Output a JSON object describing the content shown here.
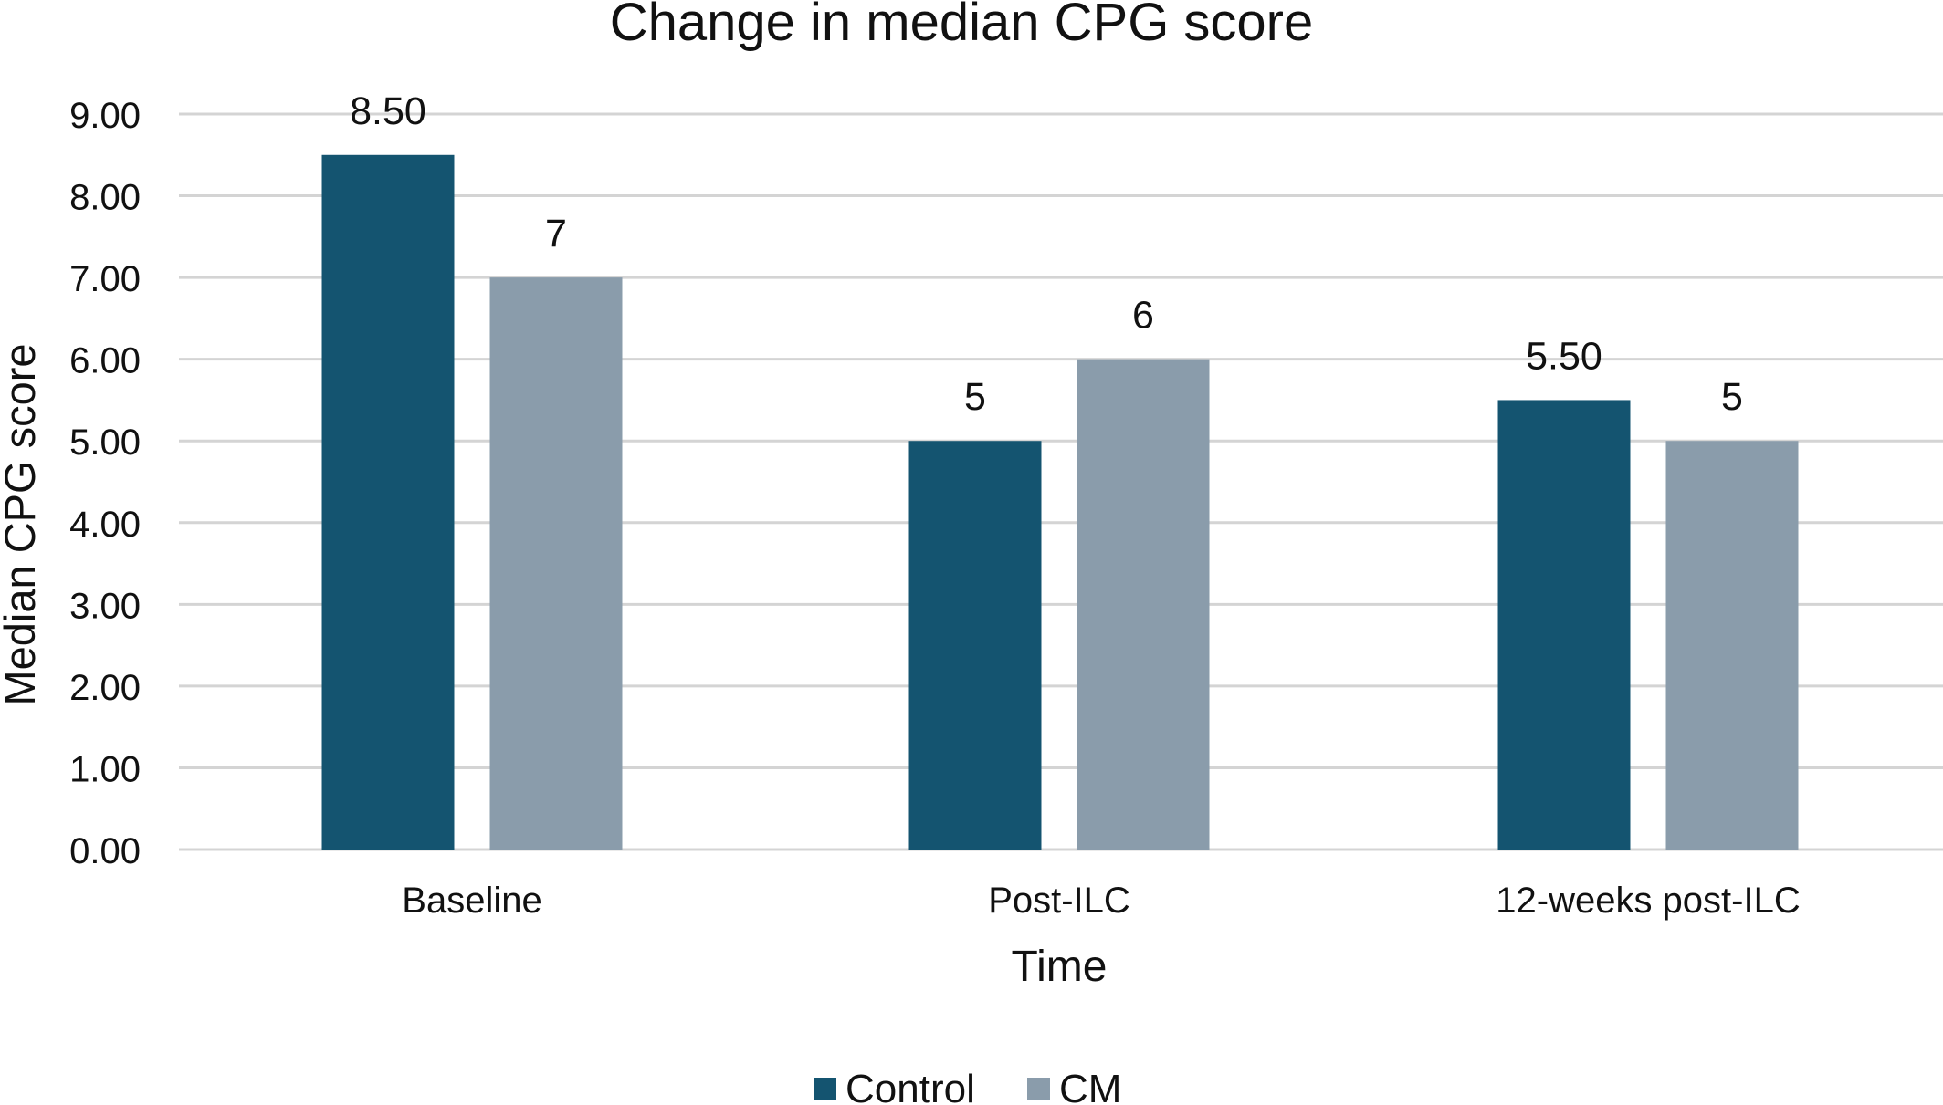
{
  "chart_data": {
    "type": "bar",
    "title": "Change in median CPG score",
    "xlabel": "Time",
    "ylabel": "Median CPG score",
    "categories": [
      "Baseline",
      "Post-ILC",
      "12-weeks post-ILC"
    ],
    "series": [
      {
        "name": "Control",
        "values": [
          8.5,
          5,
          5.5
        ],
        "labels": [
          "8.50",
          "5",
          "5.50"
        ],
        "color": "#145470"
      },
      {
        "name": "CM",
        "values": [
          7,
          6,
          5
        ],
        "labels": [
          "7",
          "6",
          "5"
        ],
        "color": "#8A9CAB"
      }
    ],
    "ylim": [
      0,
      9
    ],
    "yticks": [
      0,
      1,
      2,
      3,
      4,
      5,
      6,
      7,
      8,
      9
    ],
    "ytick_labels": [
      "0.00",
      "1.00",
      "2.00",
      "3.00",
      "4.00",
      "5.00",
      "6.00",
      "7.00",
      "8.00",
      "9.00"
    ],
    "grid": true,
    "legend_position": "bottom-center"
  }
}
